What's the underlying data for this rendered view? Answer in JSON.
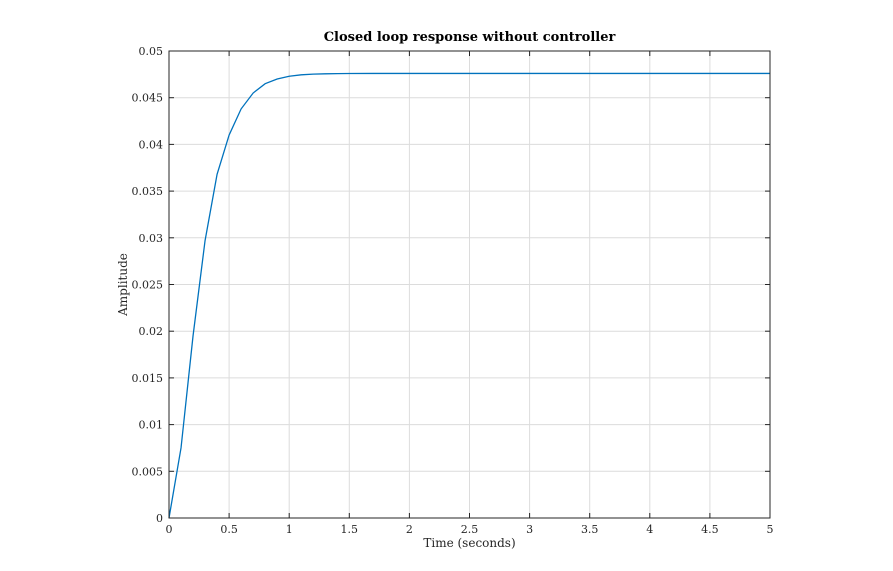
{
  "chart_data": {
    "type": "line",
    "title": "Closed loop response without controller",
    "xlabel": "Time (seconds)",
    "ylabel": "Amplitude",
    "xlim": [
      0,
      5
    ],
    "ylim": [
      0,
      0.05
    ],
    "xticks": [
      0,
      0.5,
      1,
      1.5,
      2,
      2.5,
      3,
      3.5,
      4,
      4.5,
      5
    ],
    "xtick_labels": [
      "0",
      "0.5",
      "1",
      "1.5",
      "2",
      "2.5",
      "3",
      "3.5",
      "4",
      "4.5",
      "5"
    ],
    "yticks": [
      0,
      0.005,
      0.01,
      0.015,
      0.02,
      0.025,
      0.03,
      0.035,
      0.04,
      0.045,
      0.05
    ],
    "ytick_labels": [
      "0",
      "0.005",
      "0.01",
      "0.015",
      "0.02",
      "0.025",
      "0.03",
      "0.035",
      "0.04",
      "0.045",
      "0.05"
    ],
    "grid": true,
    "series": [
      {
        "color": "#0072bd",
        "x": [
          0,
          0.1,
          0.2,
          0.3,
          0.4,
          0.5,
          0.6,
          0.7,
          0.8,
          0.9,
          1.0,
          1.1,
          1.2,
          1.3,
          1.4,
          1.5,
          1.7,
          2.0,
          2.5,
          3.0,
          3.5,
          4.0,
          4.5,
          5.0
        ],
        "y": [
          0,
          0.0075,
          0.0195,
          0.0297,
          0.0368,
          0.041,
          0.0438,
          0.0455,
          0.0465,
          0.047,
          0.0473,
          0.04745,
          0.04752,
          0.04756,
          0.04758,
          0.04759,
          0.0476,
          0.0476,
          0.0476,
          0.0476,
          0.0476,
          0.0476,
          0.0476,
          0.0476
        ]
      }
    ]
  }
}
